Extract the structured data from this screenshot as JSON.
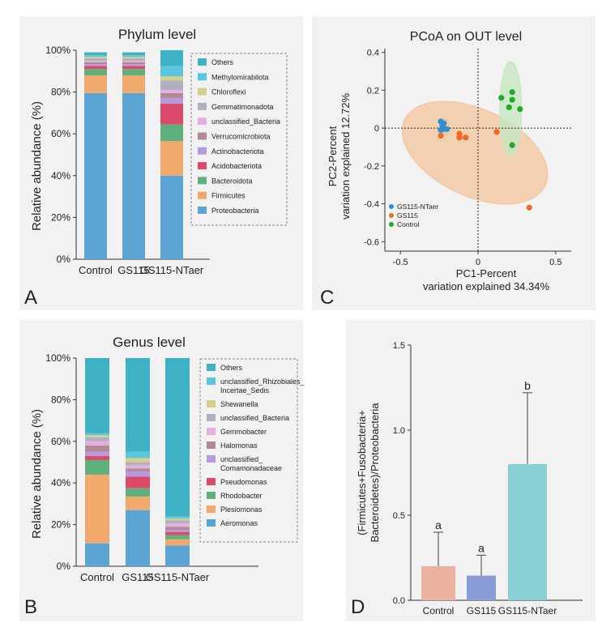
{
  "chart_data": [
    {
      "panel_label": "A",
      "type": "bar",
      "stacked": true,
      "title": "Phylum level",
      "ylabel": "Relative abundance (%)",
      "ylim": [
        0,
        100
      ],
      "yticks": [
        "0%",
        "20%",
        "40%",
        "60%",
        "80%",
        "100%"
      ],
      "categories": [
        "Control",
        "GS115",
        "GS115-NTaer"
      ],
      "legend_position": "right",
      "series": [
        {
          "name": "Proteobacteria",
          "color": "#5ba4d4",
          "values": [
            79.5,
            79.5,
            40
          ]
        },
        {
          "name": "Firmicutes",
          "color": "#f2a96e",
          "values": [
            8.5,
            8.5,
            16.5
          ]
        },
        {
          "name": "Bacteroidota",
          "color": "#5fb07d",
          "values": [
            3,
            3,
            8
          ]
        },
        {
          "name": "Acidobacteriota",
          "color": "#dc4b6a",
          "values": [
            1.5,
            1.5,
            10
          ]
        },
        {
          "name": "Actinobacteriota",
          "color": "#b49be0",
          "values": [
            0.8,
            0.8,
            2.5
          ]
        },
        {
          "name": "Verrucomicrobiota",
          "color": "#b28a94",
          "values": [
            1,
            1,
            2.5
          ]
        },
        {
          "name": "unclassified_Bacteria",
          "color": "#e7aee2",
          "values": [
            0.6,
            0.6,
            1.5
          ]
        },
        {
          "name": "Gemmatimonadota",
          "color": "#b0b0c2",
          "values": [
            1.2,
            1.2,
            4.5
          ]
        },
        {
          "name": "Chloroflexi",
          "color": "#d3d08a",
          "values": [
            0.8,
            0.8,
            2
          ]
        },
        {
          "name": "Methylomirabilota",
          "color": "#5ac6dd",
          "values": [
            0.7,
            0.7,
            5
          ]
        },
        {
          "name": "Others",
          "color": "#3fb1c4",
          "values": [
            1.4,
            1.4,
            7.5
          ]
        }
      ]
    },
    {
      "panel_label": "B",
      "type": "bar",
      "stacked": true,
      "title": "Genus level",
      "ylabel": "Relative abundance (%)",
      "ylim": [
        0,
        100
      ],
      "yticks": [
        "0%",
        "20%",
        "40%",
        "60%",
        "80%",
        "100%"
      ],
      "categories": [
        "Control",
        "GS115",
        "GS115-NTaer"
      ],
      "legend_position": "right",
      "series": [
        {
          "name": "Aeromonas",
          "color": "#5ba4d4",
          "values": [
            11,
            27,
            10
          ]
        },
        {
          "name": "Plesiomonas",
          "color": "#f2a96e",
          "values": [
            33,
            6.5,
            3
          ]
        },
        {
          "name": "Rhodobacter",
          "color": "#5fb07d",
          "values": [
            7,
            4,
            2
          ]
        },
        {
          "name": "Pseudomonas",
          "color": "#dc4b6a",
          "values": [
            2,
            5.5,
            1.5
          ]
        },
        {
          "name": "unclassified_\nComamonadaceae",
          "color": "#b49be0",
          "values": [
            2,
            2.5,
            1
          ]
        },
        {
          "name": "Halomonas",
          "color": "#b28a94",
          "values": [
            3,
            1.5,
            1.5
          ]
        },
        {
          "name": "Gemmobacter",
          "color": "#e7aee2",
          "values": [
            2,
            1.5,
            1.5
          ]
        },
        {
          "name": "unclassified_Bacteria",
          "color": "#b0b0c2",
          "values": [
            2,
            1.5,
            1.5
          ]
        },
        {
          "name": "Shewanella",
          "color": "#d3d08a",
          "values": [
            1,
            2,
            1
          ]
        },
        {
          "name": "unclassified_Rhizobiales_\nIncertae_Sedis",
          "color": "#5ac6dd",
          "values": [
            1,
            3,
            1
          ]
        },
        {
          "name": "Others",
          "color": "#3fb1c4",
          "values": [
            36,
            45,
            76
          ]
        }
      ]
    },
    {
      "panel_label": "C",
      "type": "scatter",
      "title": "PCoA on OUT level",
      "xlabel": "PC1-Percent\nvariation explained 34.34%",
      "ylabel": "PC2-Percent\nvariation explained 12.72%",
      "xlim": [
        -0.6,
        0.6
      ],
      "ylim": [
        -0.65,
        0.42
      ],
      "xticks": [
        -0.5,
        0,
        0.5
      ],
      "yticks": [
        -0.6,
        -0.4,
        -0.2,
        0,
        0.2,
        0.4
      ],
      "legend_position": "lower-left",
      "series": [
        {
          "name": "GS115-NTaer",
          "color": "#2f8fd0",
          "fill": "#e8c9a6",
          "points": [
            [
              -0.24,
              0.035
            ],
            [
              -0.23,
              0.01
            ],
            [
              -0.22,
              -0.005
            ],
            [
              -0.24,
              -0.01
            ],
            [
              -0.2,
              -0.005
            ],
            [
              -0.22,
              0.025
            ]
          ],
          "ellipse": {
            "cx": -0.22,
            "cy": 0.005,
            "rx": 0.03,
            "ry": 0.045,
            "angle": 0
          }
        },
        {
          "name": "GS115",
          "color": "#f06a1f",
          "fill": "#f2c7a0",
          "points": [
            [
              -0.24,
              -0.04
            ],
            [
              -0.12,
              -0.03
            ],
            [
              -0.12,
              -0.05
            ],
            [
              -0.08,
              -0.05
            ],
            [
              0.12,
              -0.02
            ],
            [
              0.33,
              -0.42
            ]
          ],
          "ellipse": {
            "cx": -0.02,
            "cy": -0.13,
            "rx": 0.5,
            "ry": 0.23,
            "angle": 25
          }
        },
        {
          "name": "Control",
          "color": "#22a82a",
          "fill": "#c5e6c0",
          "points": [
            [
              0.15,
              0.16
            ],
            [
              0.22,
              0.19
            ],
            [
              0.22,
              0.15
            ],
            [
              0.2,
              0.11
            ],
            [
              0.27,
              0.1
            ],
            [
              0.22,
              -0.09
            ]
          ],
          "ellipse": {
            "cx": 0.21,
            "cy": 0.1,
            "rx": 0.07,
            "ry": 0.25,
            "angle": 0
          }
        }
      ]
    },
    {
      "panel_label": "D",
      "type": "bar",
      "title": "",
      "ylabel": "(Firmicutes+Fusobacteria+\nBacteroidetes)/Proteobacteria",
      "ylim": [
        0,
        1.5
      ],
      "yticks": [
        "0.0",
        "0.5",
        "1.0",
        "1.5"
      ],
      "categories": [
        "Control",
        "GS115",
        "GS115-NTaer"
      ],
      "values": [
        0.2,
        0.145,
        0.8
      ],
      "errors": [
        0.2,
        0.12,
        0.42
      ],
      "significance": [
        "a",
        "a",
        "b"
      ],
      "colors": [
        "#ecb2a1",
        "#8a9cd8",
        "#8acfd6"
      ]
    }
  ]
}
